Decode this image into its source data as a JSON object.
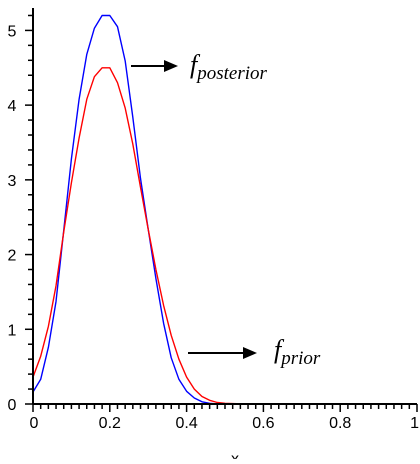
{
  "chart_data": {
    "type": "line",
    "title": "",
    "xlabel": "",
    "ylabel": "",
    "xlim": [
      0,
      1
    ],
    "ylim": [
      0,
      5.3
    ],
    "grid": false,
    "x_ticks": [
      0,
      0.2,
      0.4,
      0.6,
      0.8,
      1
    ],
    "x_tick_labels": [
      "0",
      "0.2",
      "0.4",
      "0.6",
      "0.8",
      "1"
    ],
    "y_ticks": [
      0,
      1,
      2,
      3,
      4,
      5
    ],
    "y_tick_labels": [
      "0",
      "1",
      "2",
      "3",
      "4",
      "5"
    ],
    "series": [
      {
        "color": "#0000ff",
        "x": [
          0,
          0.02,
          0.04,
          0.06,
          0.08,
          0.1,
          0.12,
          0.14,
          0.16,
          0.18,
          0.2,
          0.22,
          0.24,
          0.26,
          0.28,
          0.3,
          0.32,
          0.34,
          0.36,
          0.38,
          0.4,
          0.42,
          0.44,
          0.46,
          0.48,
          0.5,
          0.55,
          0.6,
          0.7,
          0.8,
          0.9,
          1.0
        ],
        "values": [
          0.16,
          0.33,
          0.76,
          1.37,
          2.32,
          3.28,
          4.08,
          4.68,
          5.03,
          5.2,
          5.2,
          5.05,
          4.59,
          3.84,
          3.02,
          2.34,
          1.68,
          1.08,
          0.62,
          0.33,
          0.17,
          0.08,
          0.03,
          0.01,
          0.0,
          0.0,
          0.0,
          0.0,
          0.0,
          0.0,
          0.0,
          0.0
        ]
      },
      {
        "color": "#ff0000",
        "x": [
          0,
          0.02,
          0.04,
          0.06,
          0.08,
          0.1,
          0.12,
          0.14,
          0.16,
          0.18,
          0.2,
          0.22,
          0.24,
          0.26,
          0.28,
          0.3,
          0.32,
          0.34,
          0.36,
          0.38,
          0.4,
          0.42,
          0.44,
          0.46,
          0.48,
          0.5,
          0.55,
          0.6,
          0.7,
          0.8,
          0.9,
          1.0
        ],
        "values": [
          0.36,
          0.64,
          1.04,
          1.58,
          2.3,
          2.96,
          3.56,
          4.08,
          4.38,
          4.5,
          4.5,
          4.3,
          3.96,
          3.48,
          2.9,
          2.34,
          1.8,
          1.32,
          0.92,
          0.6,
          0.36,
          0.2,
          0.1,
          0.05,
          0.02,
          0.01,
          0.0,
          0.0,
          0.0,
          0.0,
          0.0,
          0.0
        ]
      }
    ],
    "annotations": [
      {
        "base": "f",
        "subscript": "posterior",
        "target_series": 0
      },
      {
        "base": "f",
        "subscript": "prior",
        "target_series": 1
      }
    ],
    "truncated_bottom_text": "x"
  }
}
